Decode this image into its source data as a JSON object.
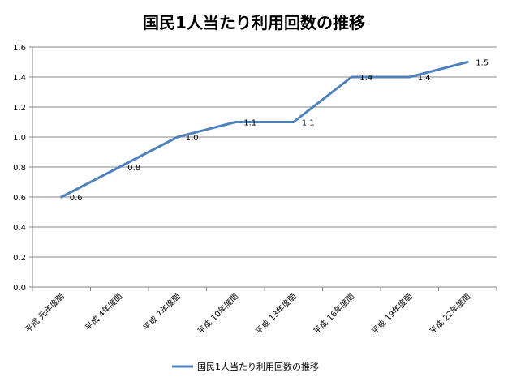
{
  "chart_data": {
    "type": "line",
    "title": "国民1人当たり利用回数の推移",
    "categories": [
      "平成 元年度間",
      "平成 4年度間",
      "平成 7年度間",
      "平成 10年度間",
      "平成 13年度間",
      "平成 16年度間",
      "平成 19年度間",
      "平成 22年度間"
    ],
    "series": [
      {
        "name": "国民1人当たり利用回数の推移",
        "values": [
          0.6,
          0.8,
          1.0,
          1.1,
          1.1,
          1.4,
          1.4,
          1.5
        ],
        "labels": [
          "0.6",
          "0.8",
          "1.0",
          "1.1",
          "1.1",
          "1.4",
          "1.4",
          "1.5"
        ],
        "color": "#4F81BD"
      }
    ],
    "y_ticks": [
      "0.0",
      "0.2",
      "0.4",
      "0.6",
      "0.8",
      "1.0",
      "1.2",
      "1.4",
      "1.6"
    ],
    "ylim": [
      0,
      1.6
    ],
    "grid": true,
    "legend_position": "bottom",
    "xlabel": "",
    "ylabel": ""
  }
}
